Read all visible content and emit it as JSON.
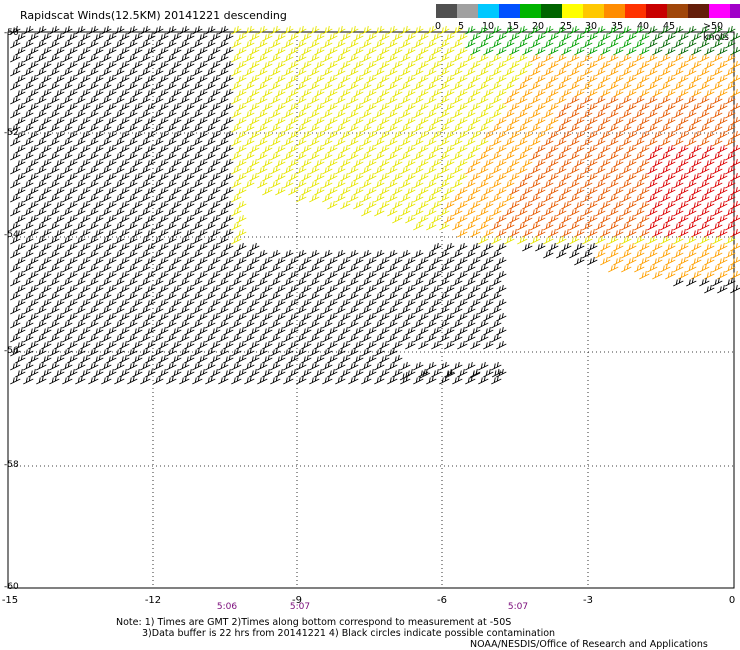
{
  "title": "Rapidscat Winds(12.5KM) 20141221 descending",
  "legend": {
    "colors": [
      "#505050",
      "#a0a0a0",
      "#00c8ff",
      "#0050ff",
      "#00b400",
      "#006400",
      "#ffff00",
      "#ffc800",
      "#ff8c00",
      "#ff3200",
      "#c80000",
      "#a0460a",
      "#641e0a",
      "#ff00ff",
      "#a000c8",
      "#64008c"
    ],
    "labels": [
      "0",
      "5",
      "10",
      "15",
      "20",
      "25",
      "30",
      "35",
      "40",
      "45",
      ">50 knots"
    ]
  },
  "axes": {
    "y_labels": [
      "-50",
      "-52",
      "-54",
      "-56",
      "-58",
      "-60"
    ],
    "x_labels": [
      "-15",
      "-12",
      "-9",
      "-6",
      "-3",
      "0"
    ]
  },
  "times": [
    "5:06",
    "5:07",
    "5:07"
  ],
  "notes": {
    "line1": "Note: 1) Times are GMT 2)Times along bottom correspond to measurement at -50S",
    "line2": "3)Data buffer is 22 hrs from 20141221 4) Black circles indicate possible contamination",
    "line3": "NOAA/NESDIS/Office of Research and Applications"
  },
  "wind_color_legend": {
    "black": "#000000",
    "green": "#00a000",
    "darkgreen": "#006400",
    "yellow": "#e6e600",
    "orange": "#ffa000",
    "darkorange": "#e65a00",
    "red": "#dc0000",
    "blue": "#0000ff"
  }
}
